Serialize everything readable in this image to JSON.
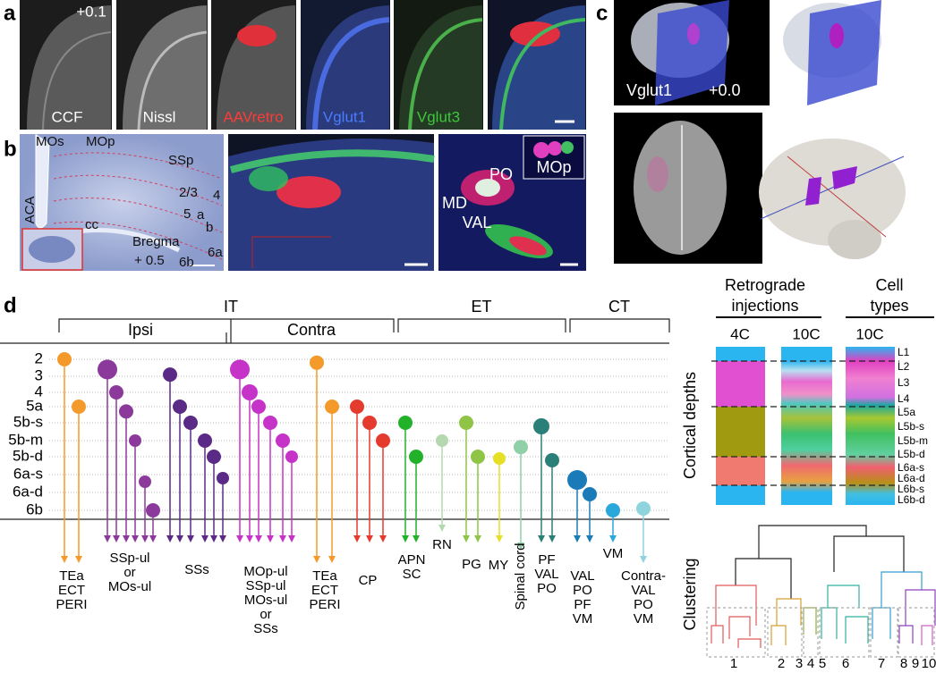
{
  "panel_labels": [
    "a",
    "b",
    "c",
    "d"
  ],
  "panel_a": {
    "offset": "+0.1",
    "images": [
      "CCF",
      "Nissl",
      "AAVretro",
      "Vglut1",
      "Vglut3"
    ]
  },
  "panel_b": {
    "regions": [
      "MOs",
      "MOp",
      "SSp",
      "ACA",
      "2/3",
      "4",
      "5",
      "a",
      "b",
      "6a",
      "6b",
      "cc"
    ],
    "bregma": "Bregma",
    "bregma_offset": "+ 0.5",
    "thalamus": [
      "PO",
      "MD",
      "VAL"
    ],
    "inset": "MOp"
  },
  "panel_c": {
    "marker": "Vglut1",
    "offset": "+0.0"
  },
  "panel_d": {
    "classes": [
      "IT",
      "ET",
      "CT"
    ],
    "subclasses": [
      "Ipsi",
      "Contra"
    ],
    "layers": [
      "2",
      "3",
      "4",
      "5a",
      "5b-s",
      "5b-m",
      "5b-d",
      "6a-s",
      "6a-d",
      "6b"
    ],
    "targets": [
      [
        "TEa",
        "ECT",
        "PERI"
      ],
      [
        "SSp-ul",
        "or",
        "MOs-ul"
      ],
      [
        "SSs"
      ],
      [
        "MOp-ul",
        "SSp-ul",
        "MOs-ul",
        "or",
        "SSs"
      ],
      [
        "TEa",
        "ECT",
        "PERI"
      ],
      [
        "CP"
      ],
      [
        "APN",
        "SC"
      ],
      [
        "RN"
      ],
      [
        "PG"
      ],
      [
        "MY"
      ],
      [
        "Spinal cord"
      ],
      [
        "PF",
        "VAL",
        "PO"
      ],
      [
        "VAL",
        "PO",
        "PF",
        "VM"
      ],
      [
        "VM"
      ],
      [
        "Contra-",
        "VAL",
        "PO",
        "VM"
      ]
    ],
    "injections_title": [
      "Retrograde",
      "injections"
    ],
    "cell_types_title": [
      "Cell",
      "types"
    ],
    "columns": [
      "4C",
      "10C",
      "10C"
    ],
    "depth_axis": "Cortical depths",
    "depth_labels": [
      "L1",
      "L2",
      "L3",
      "L4",
      "L5a",
      "L5b-s",
      "L5b-m",
      "L5b-d",
      "L6a-s",
      "L6a-d",
      "L6b-s",
      "L6b-d"
    ],
    "clustering_axis": "Clustering",
    "clusters": [
      "1",
      "2",
      "3",
      "4",
      "5",
      "6",
      "7",
      "8",
      "9",
      "10"
    ]
  }
}
